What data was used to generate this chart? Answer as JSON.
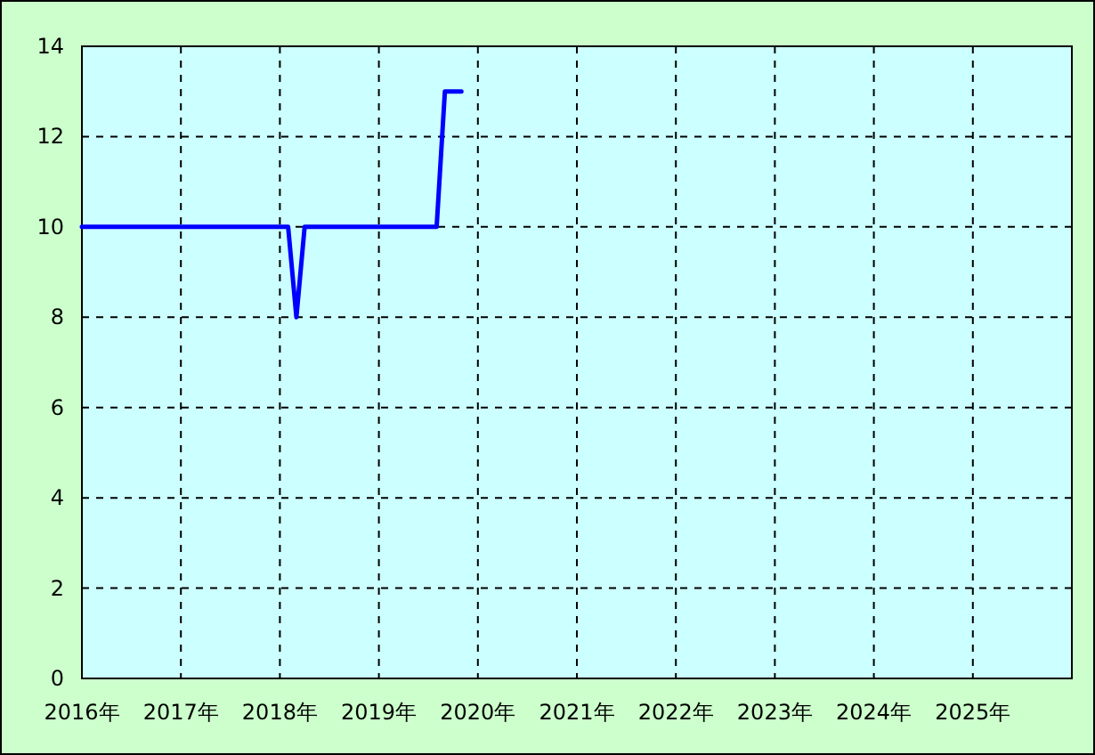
{
  "chart_data": {
    "type": "line",
    "x": [
      "2016-01",
      "2018-02",
      "2018-03",
      "2018-04",
      "2019-08",
      "2019-09",
      "2019-11"
    ],
    "series": [
      {
        "color": "#0000ff",
        "values": [
          10,
          10,
          8,
          10,
          10,
          13,
          13
        ]
      }
    ],
    "xlim": [
      "2016",
      "2026"
    ],
    "xticks": [
      {
        "value": "2016",
        "label": "2016年"
      },
      {
        "value": "2017",
        "label": "2017年"
      },
      {
        "value": "2018",
        "label": "2018年"
      },
      {
        "value": "2019",
        "label": "2019年"
      },
      {
        "value": "2020",
        "label": "2020年"
      },
      {
        "value": "2021",
        "label": "2021年"
      },
      {
        "value": "2022",
        "label": "2022年"
      },
      {
        "value": "2023",
        "label": "2023年"
      },
      {
        "value": "2024",
        "label": "2024年"
      },
      {
        "value": "2025",
        "label": "2025年"
      }
    ],
    "ylim": [
      0,
      14
    ],
    "yticks": [
      0,
      2,
      4,
      6,
      8,
      10,
      12,
      14
    ],
    "grid": true
  }
}
